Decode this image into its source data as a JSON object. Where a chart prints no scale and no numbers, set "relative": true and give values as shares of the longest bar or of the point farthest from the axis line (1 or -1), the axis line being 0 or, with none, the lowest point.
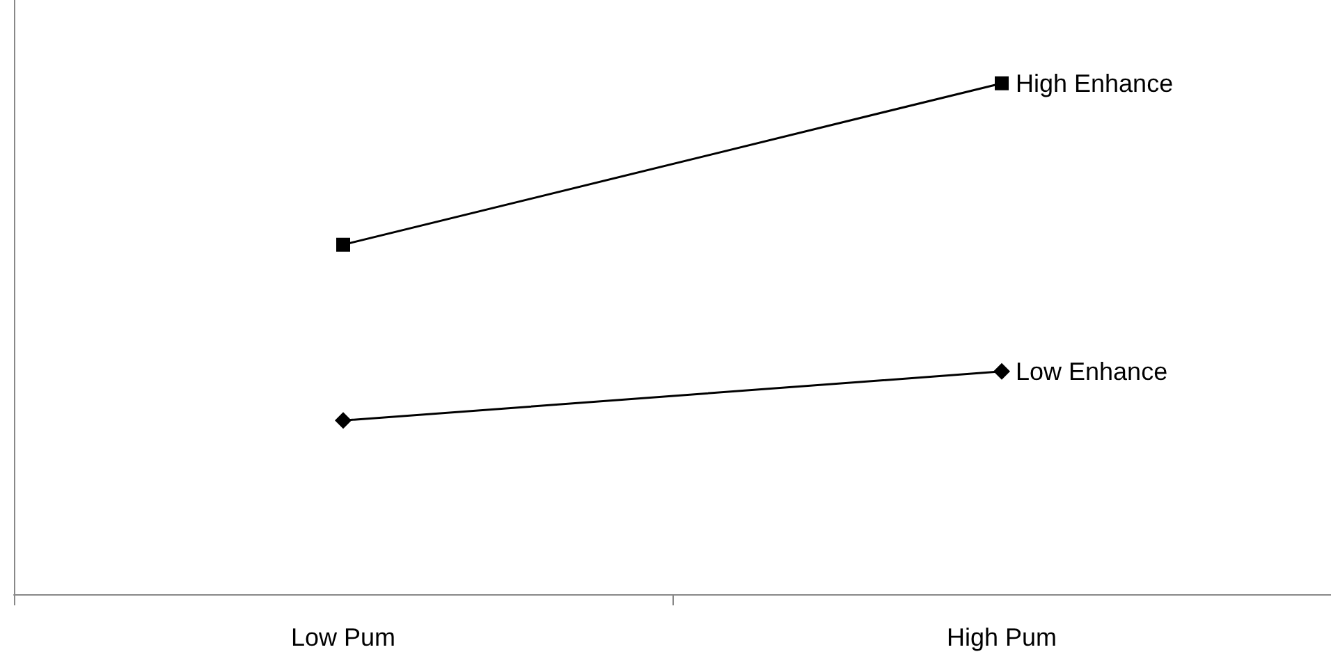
{
  "chart_data": {
    "type": "line",
    "relative": true,
    "categories": [
      "Low Pum",
      "High Pum"
    ],
    "legend": false,
    "grid": false,
    "line_style": "solid",
    "series": [
      {
        "name": "High Enhance",
        "color": "#000000",
        "marker": "square",
        "values": [
          0.684,
          1
        ]
      },
      {
        "name": "Low Enhance",
        "color": "#000000",
        "marker": "diamond",
        "values": [
          0.34,
          0.436
        ]
      }
    ]
  }
}
